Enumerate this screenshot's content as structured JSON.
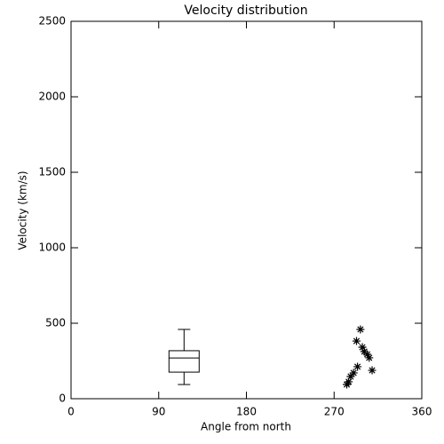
{
  "chart_data": {
    "type": "box",
    "title": "Velocity distribution",
    "x_label": "Angle from north",
    "y_label": "Velocity (km/s)",
    "xlim": [
      0,
      360
    ],
    "xticks": [
      0,
      90,
      180,
      270,
      360
    ],
    "ylim": [
      0,
      2500
    ],
    "yticks": [
      0,
      500,
      1000,
      1500,
      2000,
      2500
    ],
    "color": "#000000",
    "box": {
      "x": 116,
      "min": 94,
      "q1": 176,
      "median": 270,
      "q3": 318,
      "max": 459
    },
    "scatter": {
      "x": [
        297,
        293,
        299,
        301,
        304,
        306,
        309,
        294,
        290,
        287,
        285,
        283
      ],
      "y": [
        459,
        382,
        341,
        312,
        294,
        271,
        188,
        212,
        171,
        147,
        112,
        94
      ]
    }
  }
}
